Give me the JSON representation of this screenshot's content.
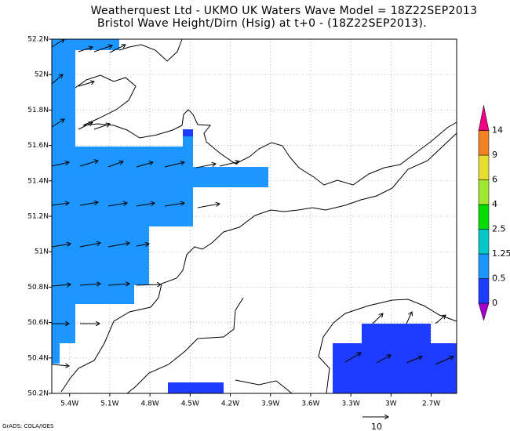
{
  "chart_data": {
    "type": "map",
    "title": "Weatherquest Ltd - UKMO UK Waters Wave Model = 18Z22SEP2013",
    "subtitle": "Bristol Wave Height/Dirn (Hsig) at t+0 - (18Z22SEP2013).",
    "xlim": [
      -5.533,
      -2.51
    ],
    "ylim": [
      50.2,
      52.2
    ],
    "xticks": [
      {
        "value": -5.4,
        "label": "5.4W"
      },
      {
        "value": -5.1,
        "label": "5.1W"
      },
      {
        "value": -4.8,
        "label": "4.8W"
      },
      {
        "value": -4.5,
        "label": "4.5W"
      },
      {
        "value": -4.2,
        "label": "4.2W"
      },
      {
        "value": -3.9,
        "label": "3.9W"
      },
      {
        "value": -3.6,
        "label": "3.6W"
      },
      {
        "value": -3.3,
        "label": "3.3W"
      },
      {
        "value": -3.0,
        "label": "3W"
      },
      {
        "value": -2.7,
        "label": "2.7W"
      }
    ],
    "yticks": [
      {
        "value": 50.2,
        "label": "50.2N"
      },
      {
        "value": 50.4,
        "label": "50.4N"
      },
      {
        "value": 50.6,
        "label": "50.6N"
      },
      {
        "value": 50.8,
        "label": "50.8N"
      },
      {
        "value": 51.0,
        "label": "51N"
      },
      {
        "value": 51.2,
        "label": "51.2N"
      },
      {
        "value": 51.4,
        "label": "51.4N"
      },
      {
        "value": 51.6,
        "label": "51.6N"
      },
      {
        "value": 51.8,
        "label": "51.8N"
      },
      {
        "value": 52.0,
        "label": "52N"
      },
      {
        "value": 52.2,
        "label": "52.2N"
      }
    ],
    "grid": true,
    "colorbar": {
      "levels": [
        0,
        0.5,
        1.25,
        2.5,
        4,
        6,
        9,
        14
      ],
      "colors": [
        "#a000c8",
        "#1e3cff",
        "#1e96ff",
        "#00c8c8",
        "#00dc00",
        "#a0e632",
        "#e6dc32",
        "#f08228",
        "#f00082"
      ]
    },
    "vector_scale": 10,
    "credit": "GrADS: COLA/IGES"
  }
}
